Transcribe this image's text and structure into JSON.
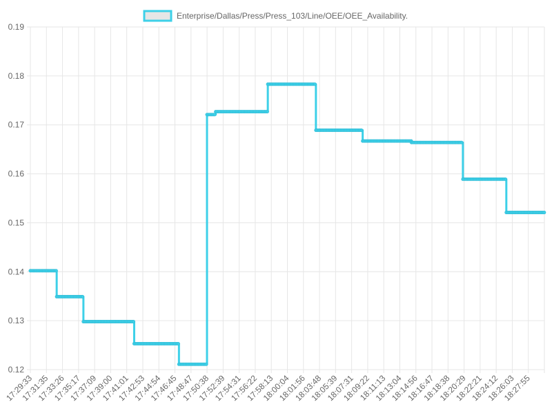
{
  "colors": {
    "line": "#3dd0e8",
    "legend_fill": "#e6e6e6",
    "grid": "#e6e6e6",
    "tick_text": "#666666"
  },
  "chart_data": {
    "type": "line",
    "stepped": true,
    "legend_position": "top-center",
    "grid": true,
    "series": [
      {
        "name": "Enterprise/Dallas/Press/Press_103/Line/OEE/OEE_Availability.",
        "segments": [
          {
            "start": "17:29:33",
            "end": "17:32:50",
            "value": 0.1402
          },
          {
            "start": "17:32:50",
            "end": "17:36:10",
            "value": 0.1349
          },
          {
            "start": "17:36:10",
            "end": "17:42:30",
            "value": 0.1298
          },
          {
            "start": "17:42:30",
            "end": "17:48:05",
            "value": 0.1253
          },
          {
            "start": "17:48:05",
            "end": "17:51:35",
            "value": 0.1211
          },
          {
            "start": "17:51:35",
            "end": "17:52:40",
            "value": 0.1721
          },
          {
            "start": "17:52:40",
            "end": "17:59:10",
            "value": 0.1727
          },
          {
            "start": "17:59:10",
            "end": "18:05:10",
            "value": 0.1783
          },
          {
            "start": "18:05:10",
            "end": "18:11:00",
            "value": 0.1689
          },
          {
            "start": "18:11:00",
            "end": "18:17:05",
            "value": 0.1667
          },
          {
            "start": "18:17:05",
            "end": "18:23:30",
            "value": 0.1664
          },
          {
            "start": "18:23:30",
            "end": "18:28:55",
            "value": 0.1589
          },
          {
            "start": "18:28:55",
            "end": "18:33:40",
            "value": 0.1521
          }
        ]
      }
    ],
    "x_tick_labels": [
      "17:29:33",
      "17:31:35",
      "17:33:26",
      "17:35:17",
      "17:37:09",
      "17:39:00",
      "17:41:01",
      "17:42:53",
      "17:44:54",
      "17:46:45",
      "17:48:47",
      "17:50:38",
      "17:52:39",
      "17:54:31",
      "17:56:22",
      "17:58:13",
      "18:00:04",
      "18:01:56",
      "18:03:48",
      "18:05:39",
      "18:07:31",
      "18:09:22",
      "18:11:13",
      "18:13:04",
      "18:14:56",
      "18:16:47",
      "18:18:38",
      "18:20:29",
      "18:22:21",
      "18:24:12",
      "18:26:03",
      "18:27:55"
    ],
    "y_ticks": [
      0.12,
      0.13,
      0.14,
      0.15,
      0.16,
      0.17,
      0.18,
      0.19
    ],
    "y_tick_labels": [
      "0.12",
      "0.13",
      "0.14",
      "0.15",
      "0.16",
      "0.17",
      "0.18",
      "0.19"
    ],
    "ylim": [
      0.12,
      0.19
    ],
    "xlim": [
      "17:29:33",
      "18:33:40"
    ],
    "title": "",
    "xlabel": "",
    "ylabel": ""
  }
}
